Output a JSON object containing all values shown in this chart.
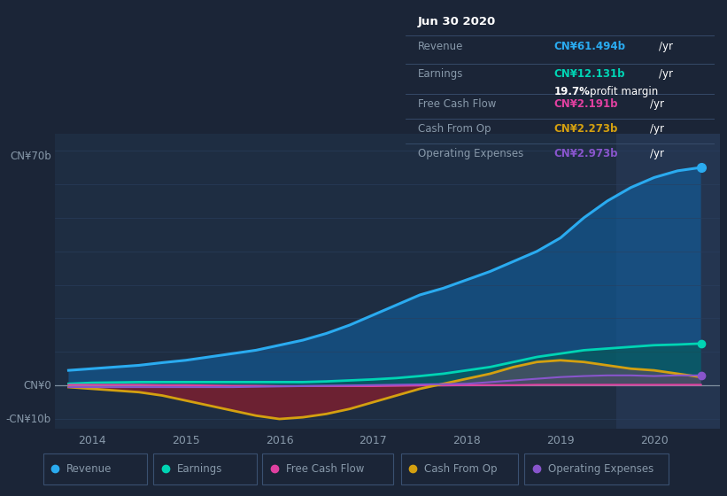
{
  "bg_color": "#1b2537",
  "plot_bg_color": "#1e2d42",
  "plot_bg_color_highlight": "#243550",
  "grid_color": "#2a3f5f",
  "zero_line_color": "#8090a0",
  "text_color": "#8899aa",
  "white_color": "#ffffff",
  "years": [
    2013.75,
    2014.0,
    2014.25,
    2014.5,
    2014.75,
    2015.0,
    2015.25,
    2015.5,
    2015.75,
    2016.0,
    2016.25,
    2016.5,
    2016.75,
    2017.0,
    2017.25,
    2017.5,
    2017.75,
    2018.0,
    2018.25,
    2018.5,
    2018.75,
    2019.0,
    2019.25,
    2019.5,
    2019.75,
    2020.0,
    2020.25,
    2020.5
  ],
  "revenue": [
    4.5,
    5.0,
    5.5,
    6.0,
    6.8,
    7.5,
    8.5,
    9.5,
    10.5,
    12.0,
    13.5,
    15.5,
    18.0,
    21.0,
    24.0,
    27.0,
    29.0,
    31.5,
    34.0,
    37.0,
    40.0,
    44.0,
    50.0,
    55.0,
    59.0,
    62.0,
    64.0,
    65.0
  ],
  "earnings": [
    0.5,
    0.8,
    0.9,
    1.0,
    1.0,
    1.0,
    1.0,
    1.0,
    1.0,
    1.0,
    1.0,
    1.2,
    1.5,
    1.8,
    2.2,
    2.8,
    3.5,
    4.5,
    5.5,
    7.0,
    8.5,
    9.5,
    10.5,
    11.0,
    11.5,
    12.0,
    12.2,
    12.5
  ],
  "free_cash_flow": [
    0.2,
    0.2,
    0.2,
    0.2,
    0.1,
    0.1,
    0.0,
    -0.1,
    -0.1,
    -0.2,
    -0.2,
    -0.2,
    -0.2,
    -0.2,
    -0.1,
    0.0,
    0.0,
    0.1,
    0.1,
    0.1,
    0.2,
    0.2,
    0.2,
    0.2,
    0.2,
    0.2,
    0.2,
    0.2
  ],
  "cash_from_op": [
    -0.5,
    -1.0,
    -1.5,
    -2.0,
    -3.0,
    -4.5,
    -6.0,
    -7.5,
    -9.0,
    -10.0,
    -9.5,
    -8.5,
    -7.0,
    -5.0,
    -3.0,
    -1.0,
    0.5,
    2.0,
    3.5,
    5.5,
    7.0,
    7.5,
    7.0,
    6.0,
    5.0,
    4.5,
    3.5,
    2.5
  ],
  "operating_expenses": [
    -0.5,
    -0.5,
    -0.5,
    -0.5,
    -0.5,
    -0.5,
    -0.5,
    -0.5,
    -0.4,
    -0.3,
    -0.2,
    -0.1,
    0.0,
    0.1,
    0.2,
    0.3,
    0.4,
    0.5,
    1.0,
    1.5,
    2.0,
    2.5,
    2.8,
    3.0,
    3.0,
    2.8,
    3.0,
    3.0
  ],
  "revenue_color": "#2aabf0",
  "earnings_color": "#00d4b4",
  "free_cash_flow_color": "#e040a0",
  "cash_from_op_color": "#d4a010",
  "operating_expenses_color": "#8855cc",
  "cash_neg_fill_color": "#7a2030",
  "cash_pos_fill_color": "#8a6010",
  "earnings_fill_color": "#006050",
  "opex_fill_color": "#553388",
  "revenue_fill_color": "#1060a0",
  "ylim": [
    -13,
    75
  ],
  "xtick_labels": [
    "2014",
    "2015",
    "2016",
    "2017",
    "2018",
    "2019",
    "2020"
  ],
  "xtick_positions": [
    2014,
    2015,
    2016,
    2017,
    2018,
    2019,
    2020
  ],
  "legend_labels": [
    "Revenue",
    "Earnings",
    "Free Cash Flow",
    "Cash From Op",
    "Operating Expenses"
  ],
  "tooltip_title": "Jun 30 2020",
  "tooltip_bg": "#080d18",
  "tooltip_border": "#3a5070",
  "highlight_x_start": 2019.6,
  "xlim_start": 2013.6,
  "xlim_end": 2020.7
}
